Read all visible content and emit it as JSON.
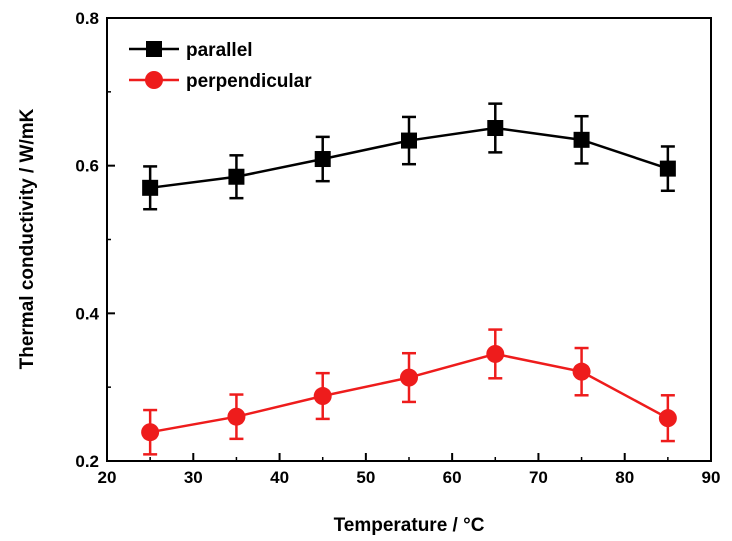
{
  "chart_data": {
    "type": "line",
    "xlabel": "Temperature / °C",
    "ylabel": "Thermal conductivity / W/mK",
    "xlim": [
      20,
      90
    ],
    "ylim": [
      0.2,
      0.8
    ],
    "xticks": [
      20,
      30,
      40,
      50,
      60,
      70,
      80,
      90
    ],
    "yticks": [
      0.2,
      0.4,
      0.6,
      0.8
    ],
    "grid": false,
    "legend": "top-left",
    "x": [
      25,
      35,
      45,
      55,
      65,
      75,
      85
    ],
    "series": [
      {
        "name": "parallel",
        "color": "#000000",
        "marker": "square",
        "values": [
          0.57,
          0.585,
          0.609,
          0.634,
          0.651,
          0.635,
          0.596
        ],
        "errors": [
          0.029,
          0.029,
          0.03,
          0.032,
          0.033,
          0.032,
          0.03
        ]
      },
      {
        "name": "perpendicular",
        "color": "#ee1c1c",
        "marker": "circle",
        "values": [
          0.239,
          0.26,
          0.288,
          0.313,
          0.345,
          0.321,
          0.258
        ],
        "errors": [
          0.03,
          0.03,
          0.031,
          0.033,
          0.033,
          0.032,
          0.031
        ]
      }
    ]
  }
}
